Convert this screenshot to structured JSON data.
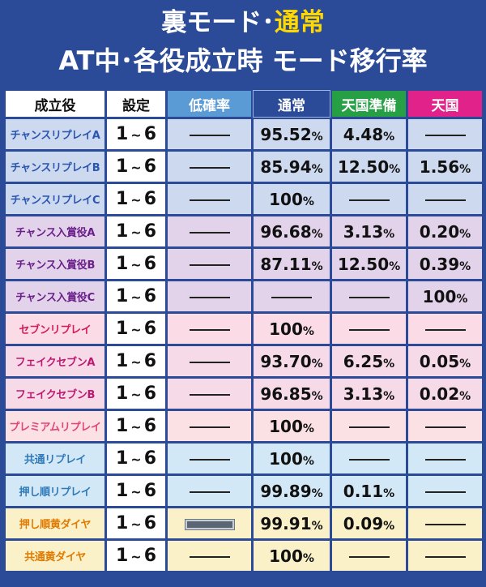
{
  "title": {
    "line1_prefix": "裏モード･",
    "line1_highlight": "通常",
    "line2": "AT中･各役成立時 モード移行率"
  },
  "headers": {
    "name": "成立役",
    "setting": "設定",
    "low": "低確率",
    "normal": "通常",
    "prep": "天国準備",
    "heaven": "天国"
  },
  "colors": {
    "background": "#2b4a97",
    "highlight": "#ffd800",
    "low_header": "#5b9bd5",
    "prep_header": "#27a045",
    "heaven_header": "#e0228a"
  },
  "rows": [
    {
      "name": "チャンスリプレイA",
      "group": "blue",
      "setting_from": "1",
      "setting_to": "6",
      "low": "",
      "normal": "95.52",
      "prep": "4.48",
      "heaven": ""
    },
    {
      "name": "チャンスリプレイB",
      "group": "blue",
      "setting_from": "1",
      "setting_to": "6",
      "low": "",
      "normal": "85.94",
      "prep": "12.50",
      "heaven": "1.56"
    },
    {
      "name": "チャンスリプレイC",
      "group": "blue",
      "setting_from": "1",
      "setting_to": "6",
      "low": "",
      "normal": "100",
      "prep": "",
      "heaven": ""
    },
    {
      "name": "チャンス入賞役A",
      "group": "purple",
      "setting_from": "1",
      "setting_to": "6",
      "low": "",
      "normal": "96.68",
      "prep": "3.13",
      "heaven": "0.20"
    },
    {
      "name": "チャンス入賞役B",
      "group": "purple",
      "setting_from": "1",
      "setting_to": "6",
      "low": "",
      "normal": "87.11",
      "prep": "12.50",
      "heaven": "0.39"
    },
    {
      "name": "チャンス入賞役C",
      "group": "purple",
      "setting_from": "1",
      "setting_to": "6",
      "low": "",
      "normal": "",
      "prep": "",
      "heaven": "100"
    },
    {
      "name": "セブンリプレイ",
      "group": "pink",
      "setting_from": "1",
      "setting_to": "6",
      "low": "",
      "normal": "100",
      "prep": "",
      "heaven": ""
    },
    {
      "name": "フェイクセブンA",
      "group": "magenta",
      "setting_from": "1",
      "setting_to": "6",
      "low": "",
      "normal": "93.70",
      "prep": "6.25",
      "heaven": "0.05"
    },
    {
      "name": "フェイクセブンB",
      "group": "magenta",
      "setting_from": "1",
      "setting_to": "6",
      "low": "",
      "normal": "96.85",
      "prep": "3.13",
      "heaven": "0.02"
    },
    {
      "name": "プレミアムリプレイ",
      "group": "salmon",
      "setting_from": "1",
      "setting_to": "6",
      "low": "",
      "normal": "100",
      "prep": "",
      "heaven": ""
    },
    {
      "name": "共通リプレイ",
      "group": "cyan",
      "setting_from": "1",
      "setting_to": "6",
      "low": "",
      "normal": "100",
      "prep": "",
      "heaven": ""
    },
    {
      "name": "押し順リプレイ",
      "group": "cyan",
      "setting_from": "1",
      "setting_to": "6",
      "low": "",
      "normal": "99.89",
      "prep": "0.11",
      "heaven": ""
    },
    {
      "name": "押し順黄ダイヤ",
      "group": "yellow",
      "setting_from": "1",
      "setting_to": "6",
      "low": "",
      "low_boxed": true,
      "normal": "99.91",
      "prep": "0.09",
      "heaven": ""
    },
    {
      "name": "共通黄ダイヤ",
      "group": "yellow",
      "setting_from": "1",
      "setting_to": "6",
      "low": "",
      "normal": "100",
      "prep": "",
      "heaven": ""
    }
  ],
  "percent_sign": "%",
  "range_sep": "~"
}
